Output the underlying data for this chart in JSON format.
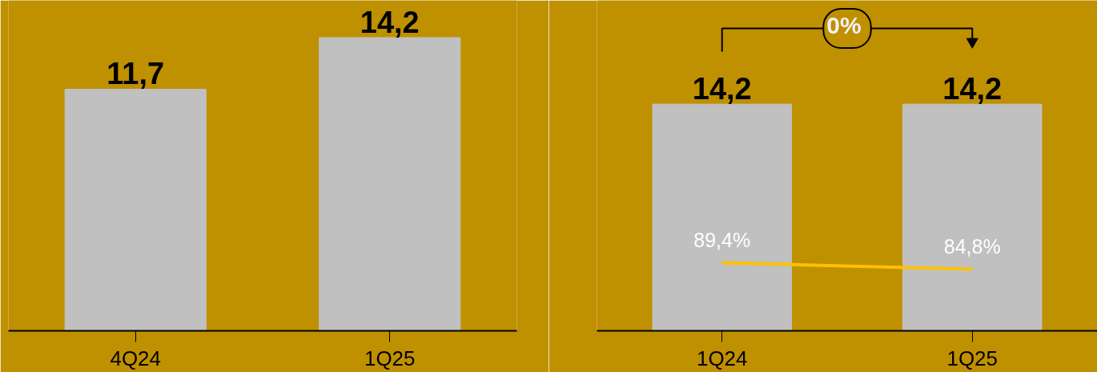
{
  "chart_data": [
    {
      "type": "bar",
      "categories": [
        "4Q24",
        "1Q25"
      ],
      "values": [
        11.7,
        14.2
      ],
      "value_labels": [
        "11,7",
        "14,2"
      ],
      "color": "#c0c0c0",
      "ylim": [
        0,
        16
      ]
    },
    {
      "type": "bar",
      "categories": [
        "1Q24",
        "1Q25"
      ],
      "ylim": [
        0,
        20.7
      ],
      "y2lim": [
        40,
        280
      ],
      "annotations": [
        "0%"
      ],
      "series": [
        {
          "type": "bar",
          "values": [
            14.2,
            14.2
          ],
          "value_labels": [
            "14,2",
            "14,2"
          ],
          "color": "#c0c0c0"
        },
        {
          "type": "line",
          "axis": "y2",
          "values": [
            89.4,
            84.8
          ],
          "value_labels": [
            "89,4%",
            "84,8%"
          ],
          "color": "#ffc000"
        }
      ]
    }
  ]
}
